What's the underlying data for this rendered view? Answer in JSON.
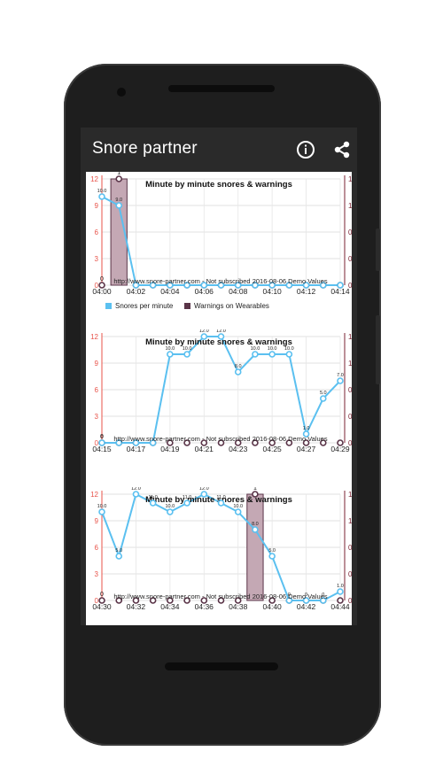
{
  "app": {
    "title": "Snore partner",
    "info_icon": "info-icon",
    "share_icon": "share-icon"
  },
  "colors": {
    "snores": "#5bc0f0",
    "warnings": "#5a3448",
    "warnings_fill": "#c4a8b4",
    "left_axis": "#e8534a",
    "right_axis": "#7a2030",
    "limit_line": "#f5d070"
  },
  "chart_data": [
    {
      "type": "line",
      "title": "Minute by minute snores & warnings",
      "watermark": "http://www.snore-partner.com - Not subscribed 2016-08-06 Demo Values",
      "x_tick_labels": [
        "04:00",
        "04:02",
        "04:04",
        "04:06",
        "04:08",
        "04:10",
        "04:12",
        "04:14"
      ],
      "ylim_left": [
        0,
        12
      ],
      "y_ticks_left": [
        "0",
        "3",
        "6",
        "9",
        "12"
      ],
      "ylim_right": [
        0,
        1
      ],
      "y_ticks_right": [
        "0",
        "0",
        "0",
        "1",
        "1"
      ],
      "legend": [
        "Snores per minute",
        "Warnings on Wearables"
      ],
      "series": [
        {
          "name": "Snores per minute",
          "values": [
            10,
            9,
            0,
            0,
            0,
            0,
            0,
            0,
            0,
            0,
            0,
            0,
            0,
            0,
            0
          ],
          "labels": [
            "10.0",
            "9.0",
            "",
            "",
            "",
            "",
            "",
            "",
            "",
            "",
            "",
            "",
            "",
            "",
            ""
          ]
        },
        {
          "name": "Warnings on Wearables",
          "values": [
            0,
            1,
            0,
            0,
            0,
            0,
            0,
            0,
            0,
            0,
            0,
            0,
            0,
            0,
            0
          ],
          "labels": [
            "0",
            "1",
            "",
            "",
            "",
            "",
            "",
            "",
            "",
            "",
            "",
            "",
            "",
            "",
            ""
          ]
        }
      ]
    },
    {
      "type": "line",
      "title": "Minute by minute snores & warnings",
      "watermark": "http://www.snore-partner.com - Not subscribed 2016-08-06 Demo Values",
      "x_tick_labels": [
        "04:15",
        "04:17",
        "04:19",
        "04:21",
        "04:23",
        "04:25",
        "04:27",
        "04:29"
      ],
      "ylim_left": [
        0,
        12
      ],
      "y_ticks_left": [
        "0",
        "3",
        "6",
        "9",
        "12"
      ],
      "ylim_right": [
        0,
        1
      ],
      "y_ticks_right": [
        "0",
        "0",
        "0",
        "1",
        "1"
      ],
      "series": [
        {
          "name": "Snores per minute",
          "values": [
            0,
            0,
            0,
            0,
            10,
            10,
            12,
            12,
            8,
            10,
            10,
            10,
            1,
            5,
            7
          ],
          "labels": [
            "0",
            "",
            "",
            "",
            "10.0",
            "10.0",
            "12.0",
            "12.0",
            "8.0",
            "10.0",
            "10.0",
            "10.0",
            "1.0",
            "5.0",
            "7.0"
          ]
        },
        {
          "name": "Warnings on Wearables",
          "values": [
            0,
            0,
            0,
            0,
            0,
            0,
            0,
            0,
            0,
            0,
            0,
            0,
            0,
            0,
            0
          ],
          "labels": [
            "0",
            "",
            "",
            "",
            "",
            "",
            "",
            "",
            "",
            "",
            "",
            "",
            "",
            "",
            ""
          ]
        }
      ]
    },
    {
      "type": "line",
      "title": "Minute by minute snores & warnings",
      "watermark": "http://www.snore-partner.com - Not subscribed 2016-08-06 Demo Values",
      "x_tick_labels": [
        "04:30",
        "04:32",
        "04:34",
        "04:36",
        "04:38",
        "04:40",
        "04:42",
        "04:44"
      ],
      "ylim_left": [
        0,
        12
      ],
      "y_ticks_left": [
        "0",
        "3",
        "6",
        "9",
        "12"
      ],
      "ylim_right": [
        0,
        1
      ],
      "y_ticks_right": [
        "0",
        "0",
        "0",
        "1",
        "1"
      ],
      "series": [
        {
          "name": "Snores per minute",
          "values": [
            10,
            5,
            12,
            11,
            10,
            11,
            12,
            11,
            10,
            8,
            5,
            0,
            0,
            0,
            1
          ],
          "labels": [
            "10.0",
            "5.0",
            "12.0",
            "11.0",
            "10.0",
            "11.0",
            "12.0",
            "11.0",
            "10.0",
            "8.0",
            "5.0",
            "0",
            "0",
            "0",
            "1.0"
          ]
        },
        {
          "name": "Warnings on Wearables",
          "values": [
            0,
            0,
            0,
            0,
            0,
            0,
            0,
            0,
            0,
            1,
            0,
            0,
            0,
            0,
            0
          ],
          "labels": [
            "0",
            "",
            "",
            "",
            "",
            "",
            "",
            "",
            "",
            "1",
            "",
            "",
            "",
            "",
            ""
          ]
        }
      ]
    }
  ]
}
